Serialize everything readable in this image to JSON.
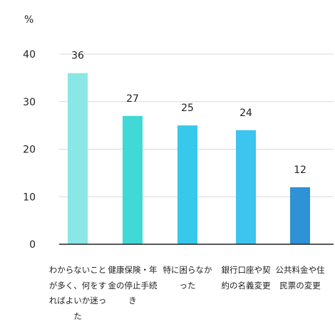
{
  "chart_data": {
    "type": "bar",
    "ylabel": "%",
    "ylim": [
      0,
      40
    ],
    "yticks": [
      0,
      10,
      20,
      30,
      40
    ],
    "categories": [
      "わからないことが多く、何をすればよいか迷った",
      "健康保険・年金の停止手続き",
      "特に困らなかった",
      "銀行口座や契約の名義変更",
      "公共料金や住民票の変更"
    ],
    "values": [
      36,
      27,
      25,
      24,
      12
    ],
    "colors": [
      "#8be6e6",
      "#40d9d6",
      "#38c8ec",
      "#3dc4ef",
      "#2f91d6"
    ],
    "grid": true,
    "data_labels": true
  }
}
